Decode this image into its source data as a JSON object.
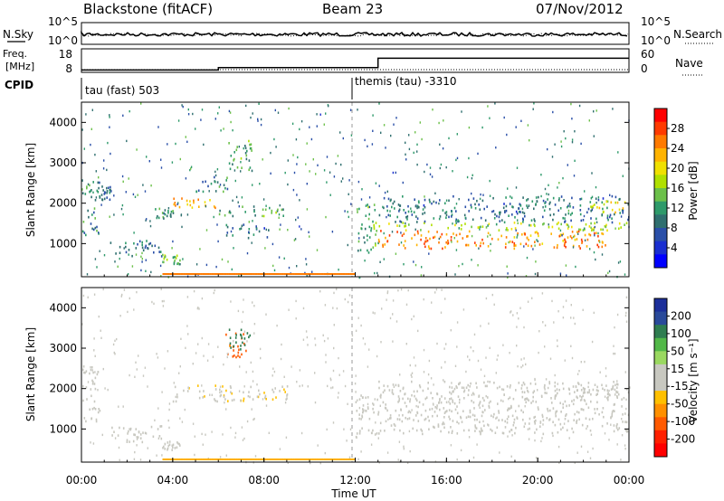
{
  "header": {
    "station": "Blackstone (fitACF)",
    "beam": "Beam 23",
    "date": "07/Nov/2012"
  },
  "status_panels": {
    "nsky": {
      "label": "N.Sky",
      "ticks": [
        "10^5",
        "10^0"
      ]
    },
    "nsearch": {
      "label": "N.Search",
      "ticks": [
        "10^5",
        "10^0"
      ]
    },
    "freq": {
      "label_line1": "Freq.",
      "label_line2": "[MHz]",
      "ticks": [
        "18",
        "8"
      ]
    },
    "nave": {
      "label": "Nave",
      "ticks": [
        "60",
        "0"
      ]
    },
    "cpid": {
      "label": "CPID",
      "segments": [
        "tau (fast) 503",
        "themis (tau) -3310"
      ]
    }
  },
  "colorbars": {
    "power": {
      "label": "Power [dB]",
      "ticks": [
        "28",
        "24",
        "20",
        "16",
        "12",
        "8",
        "4"
      ],
      "colors": [
        "#ff0000",
        "#ff3a00",
        "#ff7a00",
        "#ffb300",
        "#f0e000",
        "#b0e000",
        "#6cc04a",
        "#2e9a6a",
        "#2f6f6f",
        "#2a4fa8",
        "#1a2fd0",
        "#0000ff"
      ]
    },
    "velocity": {
      "label": "Velocity [m s⁻¹]",
      "ticks": [
        "200",
        "100",
        "50",
        "15",
        "-15",
        "-50",
        "-100",
        "-200"
      ],
      "colors": [
        "#1c2f9a",
        "#2a4a9a",
        "#2f7d50",
        "#52b848",
        "#9ad860",
        "#c8c8c0",
        "#c8c8c0",
        "#ffc000",
        "#ff9000",
        "#ff5a00",
        "#ff2000",
        "#ff0000"
      ]
    }
  },
  "axes": {
    "ylabel": "Slant Range [km]",
    "xlabel": "Time UT",
    "xticks": [
      "00:00",
      "04:00",
      "08:00",
      "12:00",
      "16:00",
      "20:00",
      "00:00"
    ]
  },
  "chart_data": {
    "type": "heatmap",
    "x_range_hours": [
      0,
      24
    ],
    "y_range_km": [
      180,
      4500
    ],
    "y_ticks_km": [
      1000,
      2000,
      3000,
      4000
    ],
    "freq_mhz": [
      {
        "t0": 0,
        "t1": 6,
        "v": 9
      },
      {
        "t0": 6,
        "t1": 13,
        "v": 10
      },
      {
        "t0": 13,
        "t1": 24,
        "v": 14
      }
    ],
    "cpid_change_hour": 12,
    "power_bands": [
      {
        "t0": 0.0,
        "t1": 0.8,
        "r0": 1200,
        "r1": 2600,
        "db": 10
      },
      {
        "t0": 0.8,
        "t1": 1.3,
        "r0": 2100,
        "r1": 2500,
        "db": 8
      },
      {
        "t0": 1.2,
        "t1": 3.5,
        "r0": 700,
        "r1": 1100,
        "db": 8
      },
      {
        "t0": 3.5,
        "t1": 4.3,
        "r0": 500,
        "r1": 750,
        "db": 14
      },
      {
        "t0": 3.2,
        "t1": 4.0,
        "r0": 1650,
        "r1": 1900,
        "db": 10
      },
      {
        "t0": 4.0,
        "t1": 6.0,
        "r0": 1900,
        "r1": 2150,
        "db": 22
      },
      {
        "t0": 6.0,
        "t1": 9.0,
        "r0": 1700,
        "r1": 1950,
        "db": 12
      },
      {
        "t0": 5.0,
        "t1": 6.4,
        "r0": 2300,
        "r1": 2700,
        "db": 10
      },
      {
        "t0": 6.4,
        "t1": 7.5,
        "r0": 2800,
        "r1": 3600,
        "db": 12
      },
      {
        "t0": 6.3,
        "t1": 8.2,
        "r0": 1150,
        "r1": 1500,
        "db": 8
      },
      {
        "t0": 12.0,
        "t1": 13.0,
        "r0": 800,
        "r1": 2000,
        "db": 12
      },
      {
        "t0": 13.0,
        "t1": 23.0,
        "r0": 900,
        "r1": 1350,
        "db": 24
      },
      {
        "t0": 13.0,
        "t1": 24.0,
        "r0": 1350,
        "r1": 1550,
        "db": 16
      },
      {
        "t0": 13.0,
        "t1": 24.0,
        "r0": 1550,
        "r1": 2200,
        "db": 8
      },
      {
        "t0": 22.0,
        "t1": 24.0,
        "r0": 1800,
        "r1": 2100,
        "db": 18
      }
    ],
    "velocity_bands": [
      {
        "t0": 0.0,
        "t1": 0.8,
        "r0": 1200,
        "r1": 2600,
        "v": 0
      },
      {
        "t0": 1.2,
        "t1": 3.5,
        "r0": 700,
        "r1": 1100,
        "v": 0
      },
      {
        "t0": 3.5,
        "t1": 4.3,
        "r0": 500,
        "r1": 750,
        "v": 0
      },
      {
        "t0": 4.0,
        "t1": 9.0,
        "r0": 1700,
        "r1": 2100,
        "v": -40
      },
      {
        "t0": 6.3,
        "t1": 7.2,
        "r0": 2800,
        "r1": 3400,
        "v": -150
      },
      {
        "t0": 6.4,
        "t1": 7.4,
        "r0": 3000,
        "r1": 3500,
        "v": 150
      },
      {
        "t0": 12.0,
        "t1": 13.0,
        "r0": 800,
        "r1": 2000,
        "v": 30
      },
      {
        "t0": 13.0,
        "t1": 24.0,
        "r0": 900,
        "r1": 1550,
        "v": 0
      },
      {
        "t0": 13.0,
        "t1": 24.0,
        "r0": 1550,
        "r1": 2200,
        "v": 0
      },
      {
        "t0": 21.5,
        "t1": 24.0,
        "r0": 1800,
        "r1": 2200,
        "v": 0
      }
    ]
  }
}
